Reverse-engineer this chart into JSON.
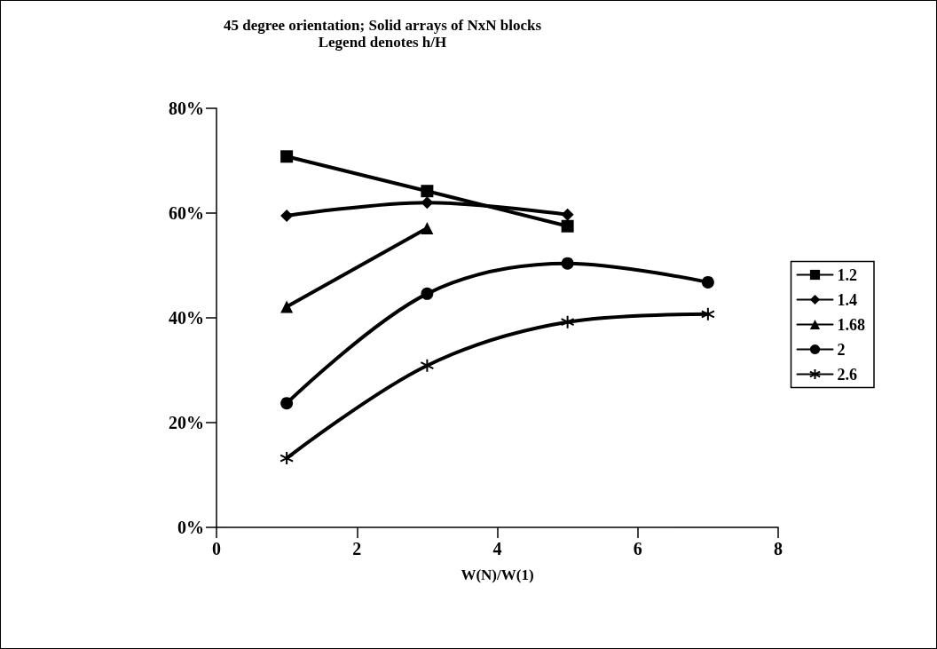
{
  "chart_data": {
    "type": "line",
    "title": "45 degree orientation; Solid arrays of NxN blocks",
    "subtitle": "Legend denotes h/H",
    "xlabel": "W(N)/W(1)",
    "x": [
      1,
      3,
      5,
      7
    ],
    "series": [
      {
        "name": "1.2",
        "color": "#000000",
        "marker": "square",
        "values": [
          70.8,
          64.2,
          57.5,
          null
        ]
      },
      {
        "name": "1.4",
        "color": "#000000",
        "marker": "diamond",
        "values": [
          59.5,
          62.0,
          59.7,
          null
        ]
      },
      {
        "name": "1.68",
        "color": "#000000",
        "marker": "triangle",
        "values": [
          42.1,
          57.1,
          null,
          null
        ]
      },
      {
        "name": "2",
        "color": "#000000",
        "marker": "circle",
        "values": [
          23.7,
          44.6,
          50.4,
          46.8
        ]
      },
      {
        "name": "2.6",
        "color": "#000000",
        "marker": "cross",
        "values": [
          13.2,
          30.9,
          39.2,
          40.7
        ]
      }
    ],
    "xlim": [
      0,
      8
    ],
    "xticks": [
      0,
      2,
      4,
      6,
      8
    ],
    "ylim": [
      0,
      80
    ],
    "yticks": [
      {
        "value": 0,
        "label": "0%"
      },
      {
        "value": 20,
        "label": "20%"
      },
      {
        "value": 40,
        "label": "40%"
      },
      {
        "value": 60,
        "label": "60%"
      },
      {
        "value": 80,
        "label": "80%"
      }
    ],
    "grid": false,
    "legend": "right",
    "line_style": "solid"
  }
}
